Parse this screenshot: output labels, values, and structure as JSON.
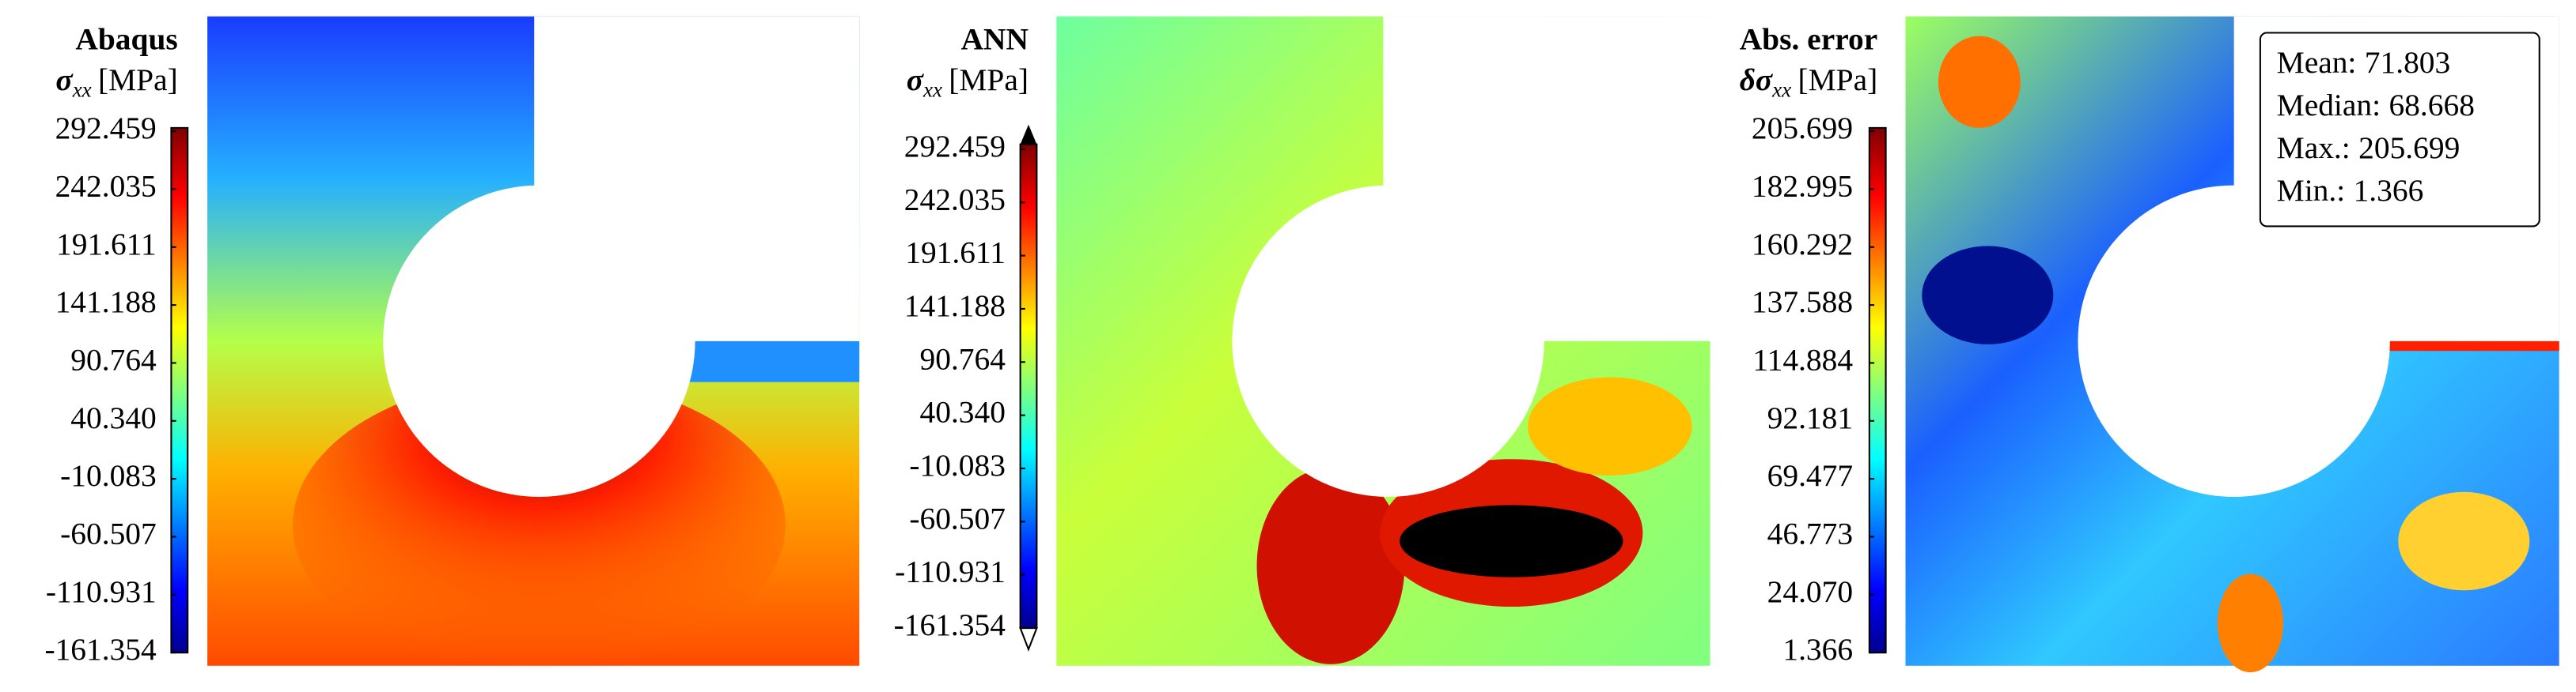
{
  "panels": [
    {
      "title": "Abaqus",
      "symbol": "σ",
      "subscript": "xx",
      "unit": "[MPa]",
      "ticks": [
        "292.459",
        "242.035",
        "191.611",
        "141.188",
        "90.764",
        "40.340",
        "-10.083",
        "-60.507",
        "-110.931",
        "-161.354"
      ]
    },
    {
      "title": "ANN",
      "symbol": "σ",
      "subscript": "xx",
      "unit": "[MPa]",
      "ticks": [
        "292.459",
        "242.035",
        "191.611",
        "141.188",
        "90.764",
        "40.340",
        "-10.083",
        "-60.507",
        "-110.931",
        "-161.354"
      ]
    },
    {
      "title": "Abs. error",
      "symbol": "δσ",
      "subscript": "xx",
      "unit": "[MPa]",
      "ticks": [
        "205.699",
        "182.995",
        "160.292",
        "137.588",
        "114.884",
        "92.181",
        "69.477",
        "46.773",
        "24.070",
        "1.366"
      ]
    }
  ],
  "stats": [
    {
      "label": "Mean:",
      "value": "71.803"
    },
    {
      "label": "Median:",
      "value": "68.668"
    },
    {
      "label": "Max.:",
      "value": "205.699"
    },
    {
      "label": "Min.:",
      "value": "1.366"
    }
  ]
}
